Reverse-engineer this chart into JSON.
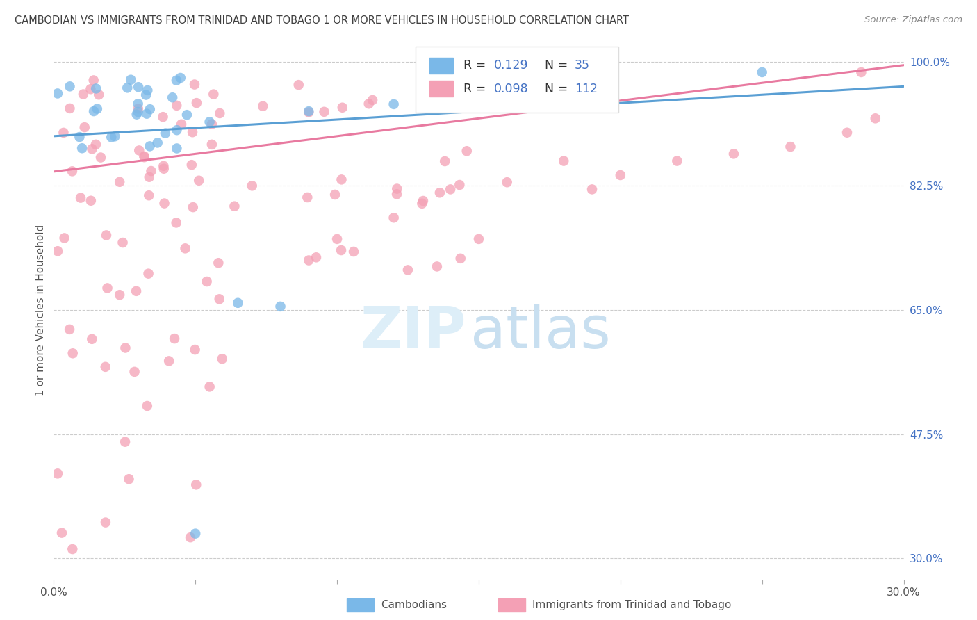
{
  "title": "CAMBODIAN VS IMMIGRANTS FROM TRINIDAD AND TOBAGO 1 OR MORE VEHICLES IN HOUSEHOLD CORRELATION CHART",
  "source": "Source: ZipAtlas.com",
  "ylabel": "1 or more Vehicles in Household",
  "ytick_labels": [
    "100.0%",
    "82.5%",
    "65.0%",
    "47.5%",
    "30.0%"
  ],
  "ytick_values": [
    1.0,
    0.825,
    0.65,
    0.475,
    0.3
  ],
  "xlim": [
    0.0,
    0.3
  ],
  "ylim": [
    0.27,
    1.03
  ],
  "cambodian_R": 0.129,
  "cambodian_N": 35,
  "trinidad_R": 0.098,
  "trinidad_N": 112,
  "legend_labels": [
    "Cambodians",
    "Immigrants from Trinidad and Tobago"
  ],
  "cambodian_color": "#7ab8e8",
  "trinidad_color": "#f4a0b5",
  "cambodian_line_color": "#5a9fd4",
  "trinidad_line_color": "#e87aa0",
  "title_color": "#404040",
  "source_color": "#888888",
  "axis_label_color": "#505050",
  "ytick_color": "#4472c4",
  "grid_color": "#cccccc",
  "background_color": "#ffffff",
  "camb_line_x0": 0.0,
  "camb_line_y0": 0.895,
  "camb_line_x1": 0.3,
  "camb_line_y1": 0.965,
  "trin_line_x0": 0.0,
  "trin_line_y0": 0.845,
  "trin_line_x1": 0.3,
  "trin_line_y1": 0.995
}
